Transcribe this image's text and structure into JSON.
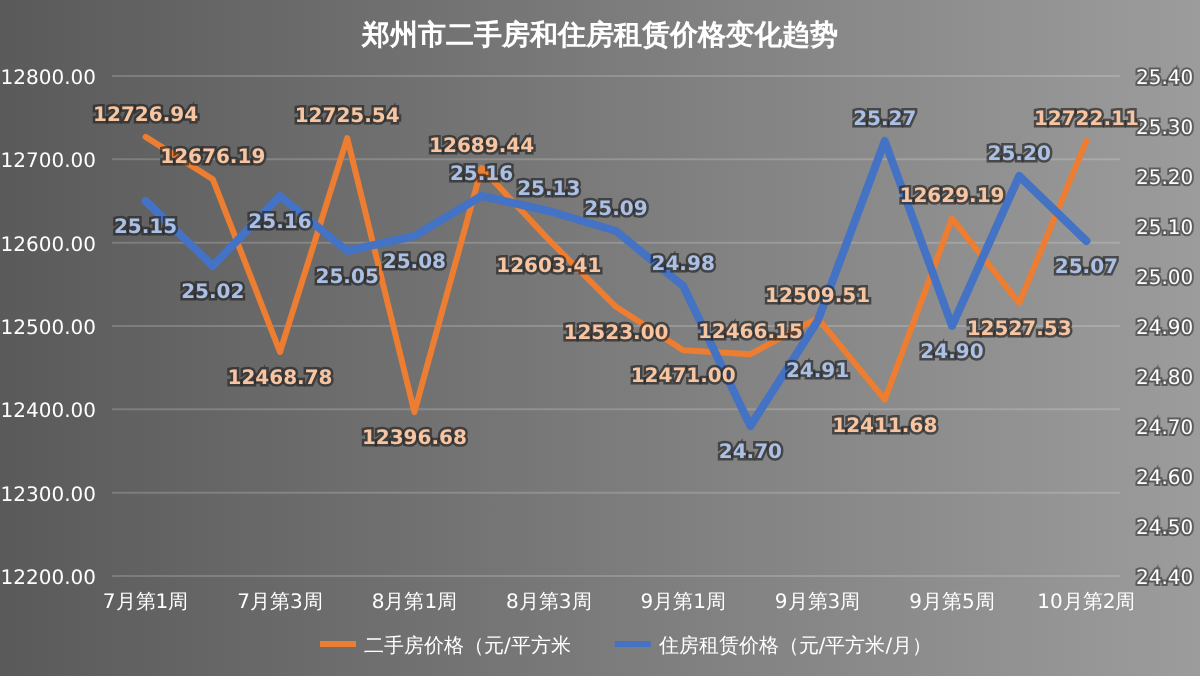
{
  "chart_data": {
    "type": "line",
    "title": "郑州市二手房和住房租赁价格变化趋势",
    "categories": [
      "7月第1周",
      null,
      "7月第3周",
      null,
      "8月第1周",
      null,
      "8月第3周",
      null,
      "9月第1周",
      null,
      "9月第3周",
      null,
      "9月第5周",
      null,
      "10月第2周"
    ],
    "series": [
      {
        "name": "二手房价格（元/平方米",
        "color": "#ed7d31",
        "values": [
          12726.94,
          12676.19,
          12468.78,
          12725.54,
          12396.68,
          12689.44,
          12603.41,
          12523.0,
          12471.0,
          12466.15,
          12509.51,
          12411.68,
          12629.19,
          12527.53,
          12722.11
        ],
        "value_labels": [
          "12726.94",
          "12676.19",
          "12468.78",
          "12725.54",
          "12396.68",
          "12689.44",
          "12603.41",
          "12523.00",
          "12471.00",
          "12466.15",
          "12509.51",
          "12411.68",
          "12629.19",
          "12527.53",
          "12722.11"
        ]
      },
      {
        "name": "住房租赁价格（元/平方米/月）",
        "color": "#4472c4",
        "axis": "y2",
        "values": [
          25.15,
          25.02,
          25.16,
          25.05,
          25.08,
          25.16,
          25.13,
          25.09,
          24.98,
          24.7,
          24.91,
          25.27,
          24.9,
          25.2,
          25.07
        ],
        "value_labels": [
          "25.15",
          "25.02",
          "25.16",
          "25.05",
          "25.08",
          "25.16",
          "25.13",
          "25.09",
          "24.98",
          "24.70",
          "24.91",
          "25.27",
          "24.90",
          "25.20",
          "25.07"
        ]
      }
    ],
    "ylim": [
      12200,
      12800
    ],
    "yticks": [
      {
        "value": 12200,
        "label": "12200.00"
      },
      {
        "value": 12300,
        "label": "12300.00"
      },
      {
        "value": 12400,
        "label": "12400.00"
      },
      {
        "value": 12500,
        "label": "12500.00"
      },
      {
        "value": 12600,
        "label": "12600.00"
      },
      {
        "value": 12700,
        "label": "12700.00"
      },
      {
        "value": 12800,
        "label": "12800.00"
      }
    ],
    "y2lim": [
      24.4,
      25.4
    ],
    "y2ticks": [
      {
        "value": 24.4,
        "label": "24.40"
      },
      {
        "value": 24.5,
        "label": "24.50"
      },
      {
        "value": 24.6,
        "label": "24.60"
      },
      {
        "value": 24.7,
        "label": "24.70"
      },
      {
        "value": 24.8,
        "label": "24.80"
      },
      {
        "value": 24.9,
        "label": "24.90"
      },
      {
        "value": 25.0,
        "label": "25.00"
      },
      {
        "value": 25.1,
        "label": "25.10"
      },
      {
        "value": 25.2,
        "label": "25.20"
      },
      {
        "value": 25.3,
        "label": "25.30"
      },
      {
        "value": 25.4,
        "label": "25.40"
      }
    ],
    "grid": "y",
    "legend": "bottom",
    "marker": "none",
    "line_style": "solid"
  }
}
